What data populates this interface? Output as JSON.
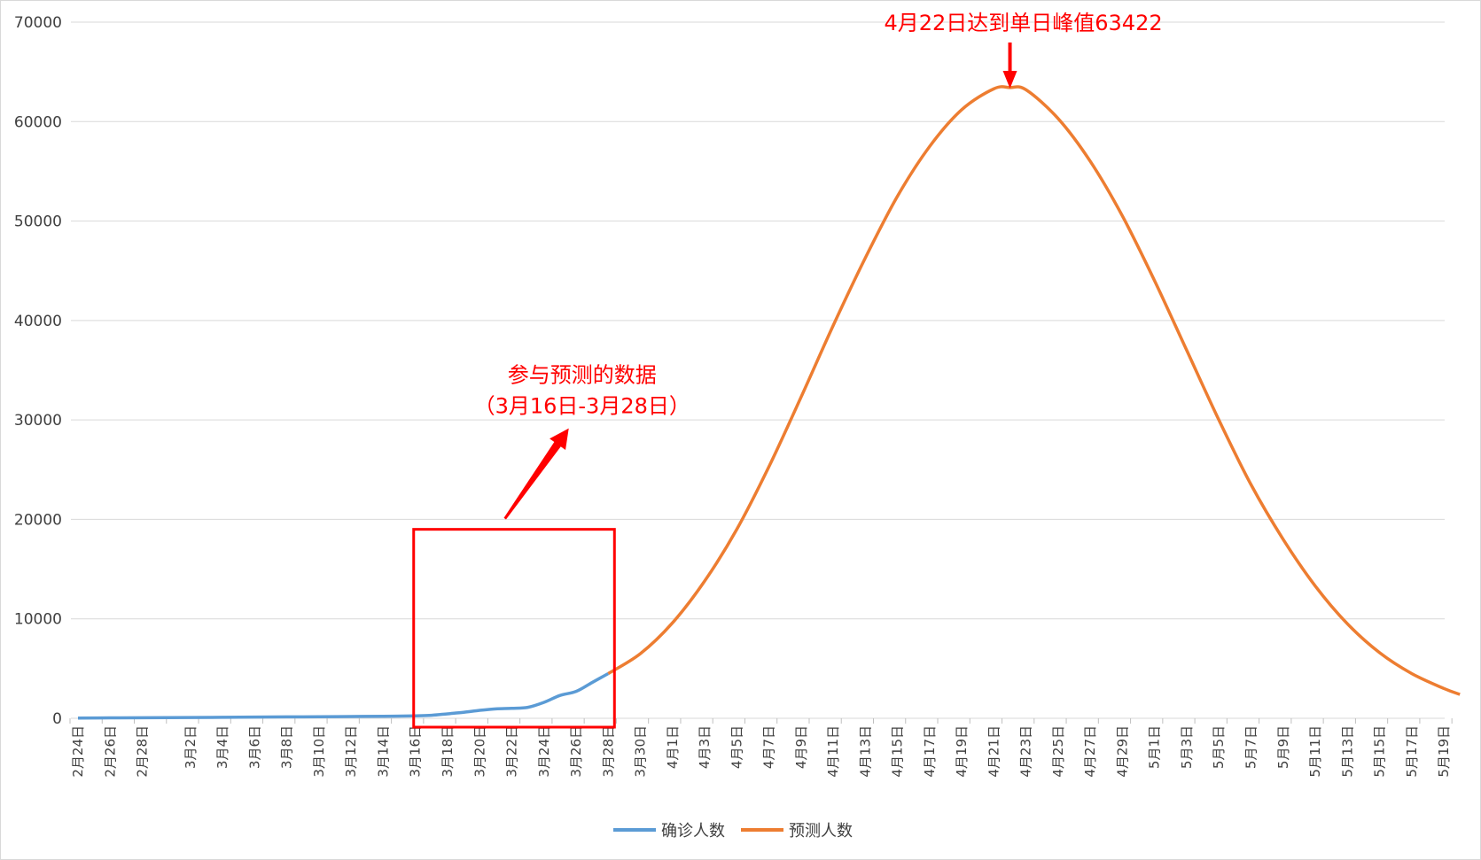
{
  "chart_data": {
    "type": "line",
    "y_ticks": [
      0,
      10000,
      20000,
      30000,
      40000,
      50000,
      60000,
      70000
    ],
    "ylim": [
      0,
      70000
    ],
    "x_tick_labels": [
      "2月24日",
      "2月26日",
      "2月28日",
      "3月2日",
      "3月4日",
      "3月6日",
      "3月8日",
      "3月10日",
      "3月12日",
      "3月14日",
      "3月16日",
      "3月18日",
      "3月20日",
      "3月22日",
      "3月24日",
      "3月26日",
      "3月28日",
      "3月30日",
      "4月1日",
      "4月3日",
      "4月5日",
      "4月7日",
      "4月9日",
      "4月11日",
      "4月13日",
      "4月15日",
      "4月17日",
      "4月19日",
      "4月21日",
      "4月23日",
      "4月25日",
      "4月27日",
      "4月29日",
      "5月1日",
      "5月3日",
      "5月5日",
      "5月7日",
      "5月9日",
      "5月11日",
      "5月13日",
      "5月15日",
      "5月17日",
      "5月19日"
    ],
    "grid": true,
    "legend_position": "bottom",
    "series": [
      {
        "name": "确诊人数",
        "color": "#5b9bd5",
        "points": [
          [
            "2月24日",
            20
          ],
          [
            "2月26日",
            40
          ],
          [
            "2月28日",
            60
          ],
          [
            "3月2日",
            80
          ],
          [
            "3月4日",
            100
          ],
          [
            "3月6日",
            120
          ],
          [
            "3月8日",
            140
          ],
          [
            "3月10日",
            160
          ],
          [
            "3月12日",
            180
          ],
          [
            "3月14日",
            200
          ],
          [
            "3月16日",
            250
          ],
          [
            "3月17日",
            300
          ],
          [
            "3月18日",
            450
          ],
          [
            "3月19日",
            600
          ],
          [
            "3月20日",
            800
          ],
          [
            "3月21日",
            950
          ],
          [
            "3月22日",
            1000
          ],
          [
            "3月23日",
            1100
          ],
          [
            "3月24日",
            1600
          ],
          [
            "3月25日",
            2300
          ],
          [
            "3月26日",
            2700
          ],
          [
            "3月27日",
            3600
          ],
          [
            "3月28日",
            4500
          ]
        ]
      },
      {
        "name": "预测人数",
        "color": "#ed7d31",
        "points": [
          [
            "3月28日",
            4500
          ],
          [
            "3月30日",
            6500
          ],
          [
            "4月1日",
            9600
          ],
          [
            "4月3日",
            13800
          ],
          [
            "4月5日",
            19000
          ],
          [
            "4月7日",
            25300
          ],
          [
            "4月9日",
            32300
          ],
          [
            "4月11日",
            39500
          ],
          [
            "4月13日",
            46300
          ],
          [
            "4月15日",
            52500
          ],
          [
            "4月17日",
            57500
          ],
          [
            "4月19日",
            61200
          ],
          [
            "4月21日",
            63300
          ],
          [
            "4月22日",
            63422
          ],
          [
            "4月23日",
            63200
          ],
          [
            "4月25日",
            60300
          ],
          [
            "4月27日",
            56000
          ],
          [
            "4月29日",
            50500
          ],
          [
            "5月1日",
            44000
          ],
          [
            "5月3日",
            37000
          ],
          [
            "5月5日",
            30000
          ],
          [
            "5月7日",
            23500
          ],
          [
            "5月9日",
            18000
          ],
          [
            "5月11日",
            13300
          ],
          [
            "5月13日",
            9500
          ],
          [
            "5月15日",
            6600
          ],
          [
            "5月17日",
            4500
          ],
          [
            "5月19日",
            3000
          ],
          [
            "5月20日",
            2400
          ]
        ]
      }
    ],
    "annotations": {
      "peak": {
        "text": "4月22日达到单日峰值63422",
        "x": "4月22日",
        "y": 63422,
        "color": "#ff0000"
      },
      "training": {
        "line1": "参与预测的数据",
        "line2": "（3月16日-3月28日）",
        "x_range": [
          "3月16日",
          "3月28日"
        ],
        "y_range": [
          0,
          19000
        ],
        "color": "#ff0000"
      }
    }
  }
}
